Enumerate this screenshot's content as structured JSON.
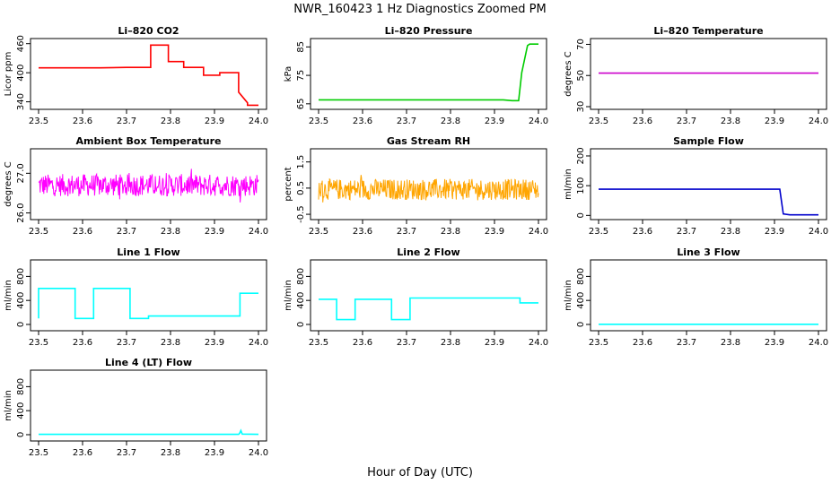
{
  "title": "NWR_160423  1 Hz Diagnostics Zoomed PM",
  "xlabel": "Hour of Day (UTC)",
  "chart_data": [
    {
      "type": "line",
      "title": "Li–820 CO2",
      "ylabel": "Licor ppm",
      "xlim": [
        23.5,
        24.0
      ],
      "ylim": [
        330,
        465
      ],
      "yticks": [
        "340",
        "400",
        "460"
      ],
      "xticks": [
        "23.5",
        "23.6",
        "23.7",
        "23.8",
        "23.9",
        "24.0"
      ],
      "series": [
        {
          "color": "#ff0000",
          "x": [
            23.5,
            23.64,
            23.7,
            23.755,
            23.755,
            23.795,
            23.795,
            23.83,
            23.83,
            23.875,
            23.875,
            23.912,
            23.912,
            23.955,
            23.955,
            23.975,
            23.975,
            24.0
          ],
          "y": [
            410,
            410,
            411,
            411,
            457,
            457,
            423,
            423,
            411,
            411,
            395,
            395,
            400,
            400,
            360,
            338,
            333,
            333
          ]
        }
      ]
    },
    {
      "type": "line",
      "title": "Li–820 Pressure",
      "ylabel": "kPa",
      "xlim": [
        23.5,
        24.0
      ],
      "ylim": [
        64,
        87
      ],
      "yticks": [
        "65",
        "75",
        "85"
      ],
      "xticks": [
        "23.5",
        "23.6",
        "23.7",
        "23.8",
        "23.9",
        "24.0"
      ],
      "series": [
        {
          "color": "#00cc00",
          "x": [
            23.5,
            23.92,
            23.94,
            23.955,
            23.962,
            23.975,
            23.98,
            24.0
          ],
          "y": [
            66.4,
            66.4,
            66.1,
            66.1,
            76,
            85.5,
            86,
            86
          ]
        }
      ]
    },
    {
      "type": "line",
      "title": "Li–820 Temperature",
      "ylabel": "degrees C",
      "xlim": [
        23.5,
        24.0
      ],
      "ylim": [
        30,
        72
      ],
      "yticks": [
        "30",
        "50",
        "70"
      ],
      "xticks": [
        "23.5",
        "23.6",
        "23.7",
        "23.8",
        "23.9",
        "24.0"
      ],
      "series": [
        {
          "color": "#cc00cc",
          "x": [
            23.5,
            24.0
          ],
          "y": [
            51.5,
            51.5
          ]
        }
      ]
    },
    {
      "type": "line",
      "title": "Ambient Box Temperature",
      "ylabel": "degrees C",
      "xlim": [
        23.5,
        24.0
      ],
      "ylim": [
        25.9,
        27.55
      ],
      "yticks": [
        "26.0",
        "27.0"
      ],
      "xticks": [
        "23.5",
        "23.6",
        "23.7",
        "23.8",
        "23.9",
        "24.0"
      ],
      "series": [
        {
          "color": "#ff00ff",
          "mean": 26.7,
          "noise": 0.28,
          "x": [
            23.5,
            24.0
          ]
        }
      ]
    },
    {
      "type": "line",
      "title": "Gas Stream RH",
      "ylabel": "percent",
      "xlim": [
        23.5,
        24.0
      ],
      "ylim": [
        -0.6,
        1.9
      ],
      "yticks": [
        "-0.5",
        "0.5",
        "1.5"
      ],
      "xticks": [
        "23.5",
        "23.6",
        "23.7",
        "23.8",
        "23.9",
        "24.0"
      ],
      "series": [
        {
          "color": "#ffa500",
          "mean": 0.45,
          "noise": 0.4,
          "x": [
            23.5,
            24.0
          ]
        }
      ]
    },
    {
      "type": "line",
      "title": "Sample Flow",
      "ylabel": "ml/min",
      "xlim": [
        23.5,
        24.0
      ],
      "ylim": [
        -5,
        215
      ],
      "yticks": [
        "0",
        "100",
        "200"
      ],
      "xticks": [
        "23.5",
        "23.6",
        "23.7",
        "23.8",
        "23.9",
        "24.0"
      ],
      "series": [
        {
          "color": "#0000cc",
          "x": [
            23.5,
            23.912,
            23.92,
            23.935,
            24.0
          ],
          "y": [
            88,
            88,
            5,
            2,
            2
          ]
        }
      ]
    },
    {
      "type": "line",
      "title": "Line 1 Flow",
      "ylabel": "ml/min",
      "xlim": [
        23.5,
        24.0
      ],
      "ylim": [
        -60,
        1030
      ],
      "yticks": [
        "0",
        "400",
        "800"
      ],
      "xticks": [
        "23.5",
        "23.6",
        "23.7",
        "23.8",
        "23.9",
        "24.0"
      ],
      "series": [
        {
          "color": "#00ffff",
          "x": [
            23.5,
            23.5,
            23.583,
            23.583,
            23.625,
            23.625,
            23.708,
            23.708,
            23.75,
            23.75,
            23.958,
            23.958,
            24.0
          ],
          "y": [
            100,
            600,
            600,
            100,
            100,
            600,
            600,
            100,
            100,
            140,
            140,
            520,
            520
          ]
        }
      ]
    },
    {
      "type": "line",
      "title": "Line 2 Flow",
      "ylabel": "ml/min",
      "xlim": [
        23.5,
        24.0
      ],
      "ylim": [
        -60,
        1030
      ],
      "yticks": [
        "0",
        "400",
        "800"
      ],
      "xticks": [
        "23.5",
        "23.6",
        "23.7",
        "23.8",
        "23.9",
        "24.0"
      ],
      "series": [
        {
          "color": "#00ffff",
          "x": [
            23.5,
            23.541,
            23.541,
            23.583,
            23.583,
            23.666,
            23.666,
            23.708,
            23.708,
            23.958,
            23.958,
            24.0
          ],
          "y": [
            420,
            420,
            80,
            80,
            420,
            420,
            80,
            80,
            440,
            440,
            360,
            360
          ]
        }
      ]
    },
    {
      "type": "line",
      "title": "Line 3 Flow",
      "ylabel": "ml/min",
      "xlim": [
        23.5,
        24.0
      ],
      "ylim": [
        -60,
        1030
      ],
      "yticks": [
        "0",
        "400",
        "800"
      ],
      "xticks": [
        "23.5",
        "23.6",
        "23.7",
        "23.8",
        "23.9",
        "24.0"
      ],
      "series": [
        {
          "color": "#00ffff",
          "x": [
            23.5,
            24.0
          ],
          "y": [
            2,
            2
          ]
        }
      ]
    },
    {
      "type": "line",
      "title": "Line 4 (LT) Flow",
      "ylabel": "ml/min",
      "xlim": [
        23.5,
        24.0
      ],
      "ylim": [
        -60,
        1030
      ],
      "yticks": [
        "0",
        "400",
        "800"
      ],
      "xticks": [
        "23.5",
        "23.6",
        "23.7",
        "23.8",
        "23.9",
        "24.0"
      ],
      "series": [
        {
          "color": "#00ffff",
          "x": [
            23.5,
            23.955,
            23.957,
            23.96,
            23.963,
            24.0
          ],
          "y": [
            5,
            5,
            20,
            70,
            10,
            5
          ]
        }
      ]
    }
  ]
}
